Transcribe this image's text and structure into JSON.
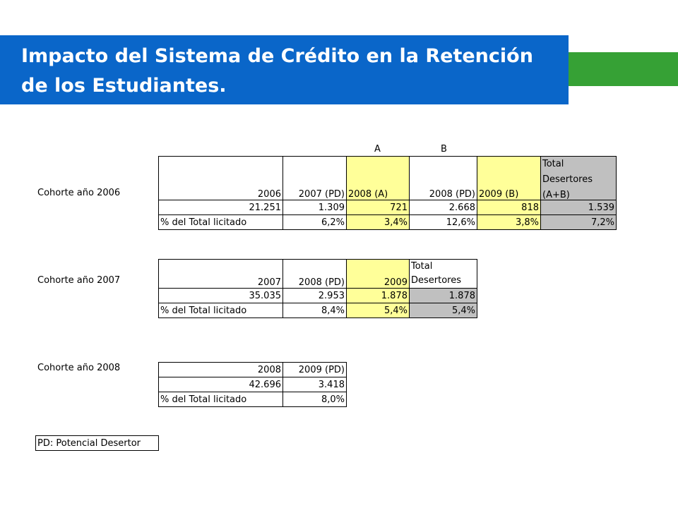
{
  "slide": {
    "title_line1": "Impacto del Sistema de Crédito en la Retención",
    "title_line2": "de los Estudiantes.",
    "colors": {
      "title_bg": "#0a66c9",
      "accent_green": "#36a135",
      "highlight_yellow": "#ffff99",
      "total_gray": "#c0c0c0"
    }
  },
  "cohort2006": {
    "label": "Cohorte año 2006",
    "marker_a": "A",
    "marker_b": "B",
    "headers": [
      "2006",
      "2007 (PD)",
      "2008 (A)",
      "2008 (PD)",
      "2009 (B)"
    ],
    "total_header": [
      "Total",
      "Desertores",
      "(A+B)"
    ],
    "counts": [
      "21.251",
      "1.309",
      "721",
      "2.668",
      "818",
      "1.539"
    ],
    "pct_label": "% del Total licitado",
    "pcts": [
      "6,2%",
      "3,4%",
      "12,6%",
      "3,8%",
      "7,2%"
    ]
  },
  "cohort2007": {
    "label": "Cohorte año 2007",
    "headers": [
      "2007",
      "2008 (PD)",
      "2009"
    ],
    "total_header": [
      "Total",
      "Desertores"
    ],
    "counts": [
      "35.035",
      "2.953",
      "1.878",
      "1.878"
    ],
    "pct_label": "% del Total licitado",
    "pcts": [
      "8,4%",
      "5,4%",
      "5,4%"
    ]
  },
  "cohort2008": {
    "label": "Cohorte año 2008",
    "headers": [
      "2008",
      "2009 (PD)"
    ],
    "counts": [
      "42.696",
      "3.418"
    ],
    "pct_label": "% del Total licitado",
    "pcts": [
      "8,0%"
    ]
  },
  "legend": {
    "text": "PD: Potencial Desertor"
  }
}
